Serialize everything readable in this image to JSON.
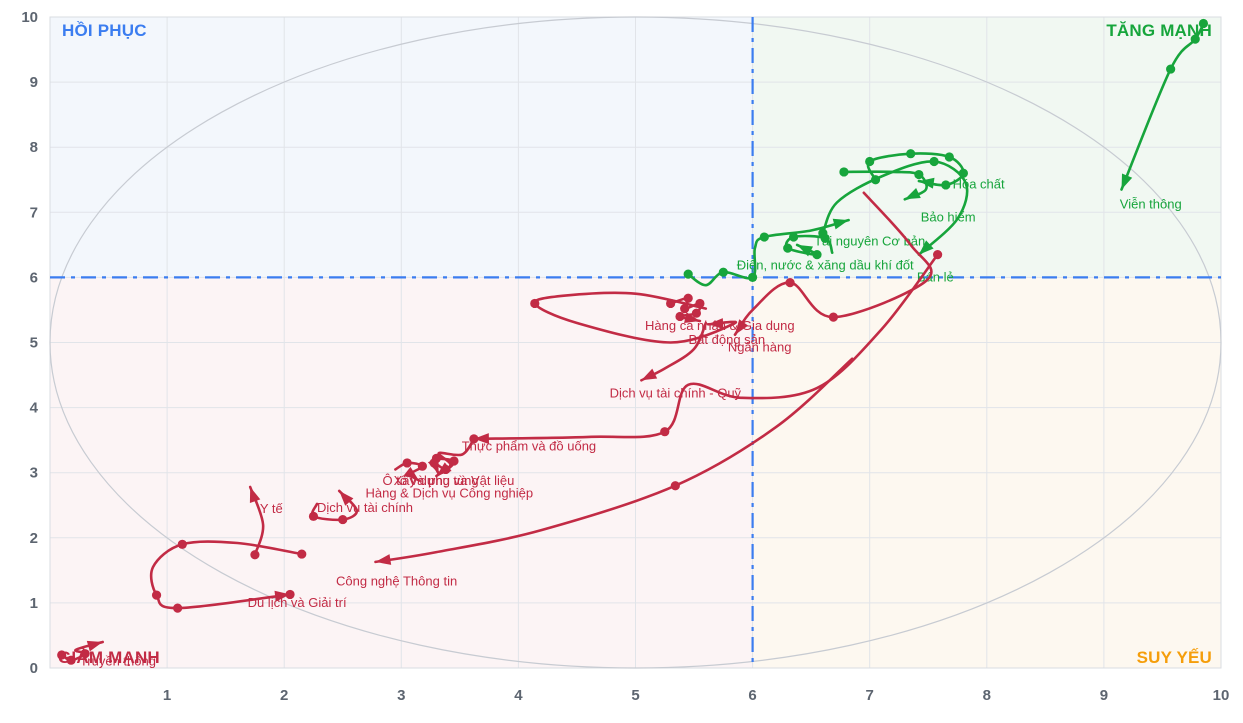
{
  "chart_data": {
    "type": "scatter",
    "title": "",
    "xlabel": "",
    "ylabel": "",
    "xlim": [
      0,
      10
    ],
    "ylim": [
      0,
      10
    ],
    "grid": true,
    "x_ticks": [
      1,
      2,
      3,
      4,
      5,
      6,
      7,
      8,
      9,
      10
    ],
    "y_ticks": [
      0,
      1,
      2,
      3,
      4,
      5,
      6,
      7,
      8,
      9,
      10
    ],
    "crosshair": {
      "x": 6,
      "y": 6,
      "color": "#3b7df0"
    },
    "ellipse": {
      "cx": 5,
      "cy": 5,
      "rx": 5,
      "ry": 5,
      "color": "#c7cbd2"
    },
    "colors": {
      "up": "#17a53c",
      "down": "#c22b45",
      "grid": "#e1e4e9",
      "border": "#d9dce2",
      "tick": "#5d6570"
    },
    "quadrants": [
      {
        "id": "tl",
        "label": "HỒI PHỤC",
        "color": "#3b7df0",
        "bg": "#f3f7fc"
      },
      {
        "id": "tr",
        "label": "TĂNG MẠNH",
        "color": "#17a53c",
        "bg": "#f1f8f2"
      },
      {
        "id": "bl",
        "label": "GIẢM MẠNH",
        "color": "#c22b45",
        "bg": "#fcf4f5"
      },
      {
        "id": "br",
        "label": "SUY YẾU",
        "color": "#f59e0b",
        "bg": "#fdf8f0"
      }
    ],
    "series": [
      {
        "id": "vien-thong",
        "label": "Viễn thông",
        "color": "#17a53c",
        "label_pos": [
          9.4,
          7.12
        ],
        "points": [
          [
            9.85,
            9.9,
            1
          ],
          [
            9.78,
            9.66,
            1
          ],
          [
            9.57,
            9.2,
            1
          ],
          [
            9.15,
            7.35,
            0
          ]
        ]
      },
      {
        "id": "hoa-chat",
        "label": "Hóa chất",
        "color": "#17a53c",
        "label_pos": [
          7.93,
          7.43
        ],
        "points": [
          [
            7.05,
            7.5,
            1
          ],
          [
            7.0,
            7.78,
            1
          ],
          [
            7.35,
            7.9,
            1
          ],
          [
            7.68,
            7.85,
            1
          ],
          [
            7.8,
            7.6,
            1
          ],
          [
            7.65,
            7.42,
            1
          ],
          [
            7.42,
            7.48,
            0
          ]
        ]
      },
      {
        "id": "bao-hiem",
        "label": "Bảo hiểm",
        "color": "#17a53c",
        "label_pos": [
          7.67,
          6.92
        ],
        "points": [
          [
            6.78,
            7.62,
            1
          ],
          [
            7.2,
            7.62,
            0
          ],
          [
            7.42,
            7.58,
            1
          ],
          [
            7.48,
            7.35,
            0
          ],
          [
            7.3,
            7.2,
            0
          ]
        ]
      },
      {
        "id": "ban-le",
        "label": "Bán lẻ",
        "color": "#17a53c",
        "label_pos": [
          7.56,
          6.0
        ],
        "points": [
          [
            6.6,
            6.68,
            1
          ],
          [
            6.72,
            7.15,
            0
          ],
          [
            7.1,
            7.55,
            0
          ],
          [
            7.55,
            7.78,
            1
          ],
          [
            7.82,
            7.45,
            0
          ],
          [
            7.75,
            6.9,
            0
          ],
          [
            7.42,
            6.35,
            0
          ]
        ]
      },
      {
        "id": "tai-nguyen-co-ban",
        "label": "Tài nguyên Cơ bản",
        "color": "#17a53c",
        "label_pos": [
          7.0,
          6.55
        ],
        "points": [
          [
            6.68,
            6.38,
            0
          ],
          [
            6.62,
            6.6,
            1
          ],
          [
            6.35,
            6.62,
            1
          ],
          [
            6.3,
            6.45,
            1
          ],
          [
            6.55,
            6.35,
            1
          ],
          [
            6.38,
            6.5,
            0
          ]
        ]
      },
      {
        "id": "dien-nuoc-xang-dau",
        "label": "Điện, nước & xăng dầu khí đốt",
        "color": "#17a53c",
        "label_pos": [
          6.62,
          6.18
        ],
        "points": [
          [
            5.45,
            6.05,
            1
          ],
          [
            5.6,
            5.88,
            0
          ],
          [
            5.75,
            6.08,
            1
          ],
          [
            6.0,
            6.0,
            1
          ],
          [
            6.02,
            6.45,
            0
          ],
          [
            6.1,
            6.62,
            1
          ],
          [
            6.5,
            6.72,
            0
          ],
          [
            6.82,
            6.88,
            0
          ]
        ]
      },
      {
        "id": "hang-ca-nhan-gia-dung",
        "label": "Hàng cá nhân & Gia dụng",
        "color": "#c22b45",
        "label_pos": [
          5.72,
          5.25
        ],
        "points": [
          [
            5.3,
            5.6,
            1
          ],
          [
            5.45,
            5.68,
            1
          ],
          [
            5.42,
            5.52,
            1
          ],
          [
            5.55,
            5.6,
            1
          ],
          [
            5.52,
            5.45,
            1
          ],
          [
            5.38,
            5.4,
            1
          ],
          [
            5.55,
            5.33,
            0
          ]
        ]
      },
      {
        "id": "bat-dong-san",
        "label": "Bất động sản",
        "color": "#c22b45",
        "label_pos": [
          5.78,
          5.04
        ],
        "points": [
          [
            5.6,
            5.52,
            0
          ],
          [
            5.0,
            5.75,
            0
          ],
          [
            4.4,
            5.72,
            0
          ],
          [
            4.14,
            5.6,
            1
          ],
          [
            4.5,
            5.3,
            0
          ],
          [
            5.3,
            5.0,
            0
          ],
          [
            5.85,
            5.3,
            0
          ],
          [
            5.62,
            5.28,
            0
          ]
        ]
      },
      {
        "id": "ngan-hang",
        "label": "Ngân hàng",
        "color": "#c22b45",
        "label_pos": [
          6.06,
          4.92
        ],
        "points": [
          [
            6.95,
            7.3,
            0
          ],
          [
            7.35,
            6.5,
            0
          ],
          [
            7.49,
            5.96,
            0
          ],
          [
            6.69,
            5.39,
            1
          ],
          [
            6.32,
            5.92,
            1
          ],
          [
            6.0,
            5.5,
            0
          ],
          [
            5.85,
            5.12,
            0
          ]
        ]
      },
      {
        "id": "dich-vu-tai-chinh-quy",
        "label": "Dịch vụ tài chính - Quỹ",
        "color": "#c22b45",
        "label_pos": [
          5.34,
          4.22
        ],
        "points": [
          [
            5.6,
            5.3,
            0
          ],
          [
            5.5,
            4.9,
            0
          ],
          [
            5.25,
            4.6,
            0
          ],
          [
            5.05,
            4.42,
            0
          ]
        ]
      },
      {
        "id": "thuc-pham-do-uong",
        "label": "Thực phẩm và đồ uống",
        "color": "#c22b45",
        "label_pos": [
          4.09,
          3.4
        ],
        "points": [
          [
            7.58,
            6.35,
            1
          ],
          [
            7.1,
            5.2,
            0
          ],
          [
            6.55,
            4.3,
            0
          ],
          [
            5.9,
            4.15,
            0
          ],
          [
            5.45,
            4.35,
            0
          ],
          [
            5.25,
            3.63,
            1
          ],
          [
            4.6,
            3.55,
            0
          ],
          [
            3.62,
            3.52,
            0
          ]
        ]
      },
      {
        "id": "o-to-phu-tung",
        "label": "Ô tô và phụ tùng",
        "color": "#c22b45",
        "label_pos": [
          3.25,
          2.87
        ],
        "points": [
          [
            3.3,
            3.22,
            1
          ],
          [
            3.45,
            3.18,
            1
          ],
          [
            3.38,
            3.05,
            1
          ],
          [
            3.28,
            3.15,
            1
          ],
          [
            3.32,
            2.98,
            0
          ]
        ]
      },
      {
        "id": "xay-dung-vat-lieu",
        "label": "Xây dựng và Vật liệu",
        "color": "#c22b45",
        "label_pos": [
          3.45,
          2.87
        ],
        "points": [
          [
            2.95,
            3.05,
            0
          ],
          [
            3.05,
            3.15,
            1
          ],
          [
            3.18,
            3.1,
            1
          ],
          [
            3.08,
            2.98,
            0
          ],
          [
            3.15,
            2.88,
            0
          ]
        ]
      },
      {
        "id": "hang-dich-vu-cong-nghiep",
        "label": "Hàng & Dịch vụ Công nghiệp",
        "color": "#c22b45",
        "label_pos": [
          3.41,
          2.68
        ],
        "points": [
          [
            3.62,
            3.52,
            1
          ],
          [
            3.52,
            3.28,
            0
          ],
          [
            3.32,
            3.3,
            0
          ],
          [
            3.42,
            3.12,
            0
          ],
          [
            3.3,
            2.95,
            0
          ]
        ]
      },
      {
        "id": "y-te",
        "label": "Y tế",
        "color": "#c22b45",
        "label_pos": [
          1.89,
          2.44
        ],
        "points": [
          [
            1.75,
            1.74,
            1
          ],
          [
            1.82,
            2.2,
            0
          ],
          [
            1.71,
            2.78,
            0
          ]
        ]
      },
      {
        "id": "dich-vu-tai-chinh",
        "label": "Dịch vụ tài chính",
        "color": "#c22b45",
        "label_pos": [
          2.69,
          2.46
        ],
        "points": [
          [
            2.28,
            2.52,
            0
          ],
          [
            2.25,
            2.33,
            1
          ],
          [
            2.5,
            2.28,
            1
          ],
          [
            2.62,
            2.42,
            0
          ],
          [
            2.47,
            2.72,
            0
          ]
        ]
      },
      {
        "id": "cong-nghe-thong-tin",
        "label": "Công nghệ Thông tin",
        "color": "#c22b45",
        "label_pos": [
          2.96,
          1.33
        ],
        "points": [
          [
            6.85,
            4.75,
            0
          ],
          [
            6.2,
            3.7,
            0
          ],
          [
            5.34,
            2.8,
            1
          ],
          [
            4.2,
            2.12,
            0
          ],
          [
            3.3,
            1.78,
            0
          ],
          [
            2.78,
            1.63,
            0
          ]
        ]
      },
      {
        "id": "du-lich-giai-tri",
        "label": "Du lịch và Giải trí",
        "color": "#c22b45",
        "label_pos": [
          2.11,
          1.0
        ],
        "points": [
          [
            2.15,
            1.75,
            1
          ],
          [
            1.6,
            1.92,
            0
          ],
          [
            1.13,
            1.9,
            1
          ],
          [
            0.88,
            1.55,
            0
          ],
          [
            0.91,
            1.12,
            1
          ],
          [
            1.09,
            0.92,
            1
          ],
          [
            2.05,
            1.13,
            1
          ]
        ]
      },
      {
        "id": "truyen-thong",
        "label": "Truyền thông",
        "color": "#c22b45",
        "label_pos": [
          0.58,
          0.1
        ],
        "points": [
          [
            0.1,
            0.2,
            1
          ],
          [
            0.18,
            0.12,
            1
          ],
          [
            0.3,
            0.22,
            1
          ],
          [
            0.22,
            0.28,
            0
          ],
          [
            0.45,
            0.4,
            0
          ]
        ]
      }
    ]
  }
}
